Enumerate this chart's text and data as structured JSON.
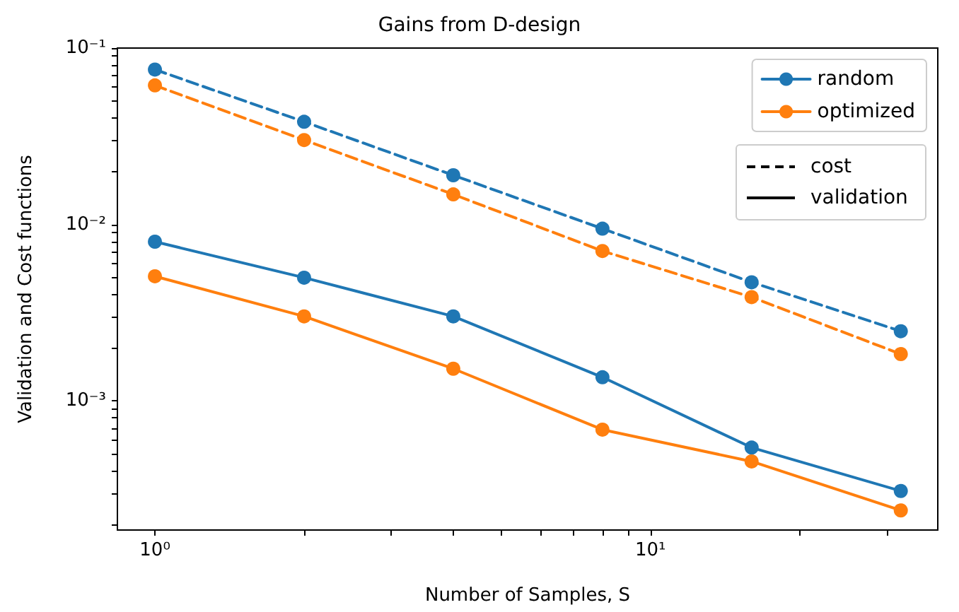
{
  "chart_data": {
    "type": "line",
    "title": "Gains from D-design",
    "xlabel": "Number of Samples, S",
    "ylabel": "Validation and Cost functions",
    "log": "xy",
    "grid": false,
    "legend": "top right",
    "marker": "circle",
    "xlim": [
      0.84,
      38
    ],
    "ylim": [
      0.000185,
      0.1
    ],
    "xticks": [
      {
        "value": 1,
        "label": "10⁰"
      },
      {
        "value": 2,
        "label": null
      },
      {
        "value": 3,
        "label": null
      },
      {
        "value": 4,
        "label": null
      },
      {
        "value": 5,
        "label": null
      },
      {
        "value": 6,
        "label": null
      },
      {
        "value": 7,
        "label": null
      },
      {
        "value": 8,
        "label": null
      },
      {
        "value": 9,
        "label": null
      },
      {
        "value": 10,
        "label": "10¹"
      },
      {
        "value": 20,
        "label": null
      },
      {
        "value": 30,
        "label": null
      }
    ],
    "yticks": [
      {
        "value": 0.0002,
        "label": null
      },
      {
        "value": 0.0003,
        "label": null
      },
      {
        "value": 0.0004,
        "label": null
      },
      {
        "value": 0.0005,
        "label": null
      },
      {
        "value": 0.0006,
        "label": null
      },
      {
        "value": 0.0007,
        "label": null
      },
      {
        "value": 0.0008,
        "label": null
      },
      {
        "value": 0.0009,
        "label": null
      },
      {
        "value": 0.001,
        "label": "10⁻³"
      },
      {
        "value": 0.002,
        "label": null
      },
      {
        "value": 0.003,
        "label": null
      },
      {
        "value": 0.004,
        "label": null
      },
      {
        "value": 0.005,
        "label": null
      },
      {
        "value": 0.006,
        "label": null
      },
      {
        "value": 0.007,
        "label": null
      },
      {
        "value": 0.008,
        "label": null
      },
      {
        "value": 0.009,
        "label": null
      },
      {
        "value": 0.01,
        "label": "10⁻²"
      },
      {
        "value": 0.02,
        "label": null
      },
      {
        "value": 0.03,
        "label": null
      },
      {
        "value": 0.04,
        "label": null
      },
      {
        "value": 0.05,
        "label": null
      },
      {
        "value": 0.06,
        "label": null
      },
      {
        "value": 0.07,
        "label": null
      },
      {
        "value": 0.08,
        "label": null
      },
      {
        "value": 0.09,
        "label": null
      },
      {
        "value": 0.1,
        "label": "10⁻¹"
      }
    ],
    "x": [
      1,
      2,
      4,
      8,
      16,
      32
    ],
    "annotations": [
      "cost",
      "validation"
    ],
    "series": [
      {
        "color": "#1f77b4",
        "line_style": "dashed",
        "values": [
          0.0755,
          0.0382,
          0.019,
          0.00946,
          0.0047,
          0.00248
        ]
      },
      {
        "color": "#ff7f0e",
        "line_style": "dashed",
        "values": [
          0.0614,
          0.0301,
          0.0148,
          0.00707,
          0.00387,
          0.00184
        ]
      },
      {
        "name": "random",
        "color": "#1f77b4",
        "line_style": "solid",
        "values": [
          0.00798,
          0.00499,
          0.00301,
          0.00136,
          0.000543,
          0.000308
        ]
      },
      {
        "name": "optimized",
        "color": "#ff7f0e",
        "line_style": "solid",
        "values": [
          0.00508,
          0.00301,
          0.00152,
          0.000686,
          0.000453,
          0.000239
        ]
      }
    ]
  }
}
